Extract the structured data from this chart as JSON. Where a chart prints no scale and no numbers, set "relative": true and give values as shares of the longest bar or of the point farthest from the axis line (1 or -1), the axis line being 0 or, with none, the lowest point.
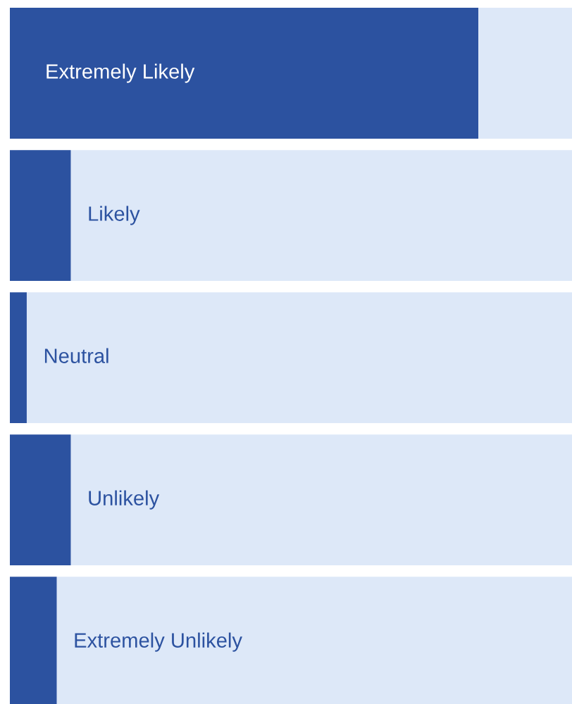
{
  "chart_data": {
    "type": "bar",
    "orientation": "horizontal",
    "relative": true,
    "categories": [
      "Extremely Likely",
      "Likely",
      "Neutral",
      "Unlikely",
      "Extremely Unlikely"
    ],
    "values": [
      1,
      0.13,
      0.036,
      0.13,
      0.1
    ],
    "color": "#2c52a0"
  }
}
